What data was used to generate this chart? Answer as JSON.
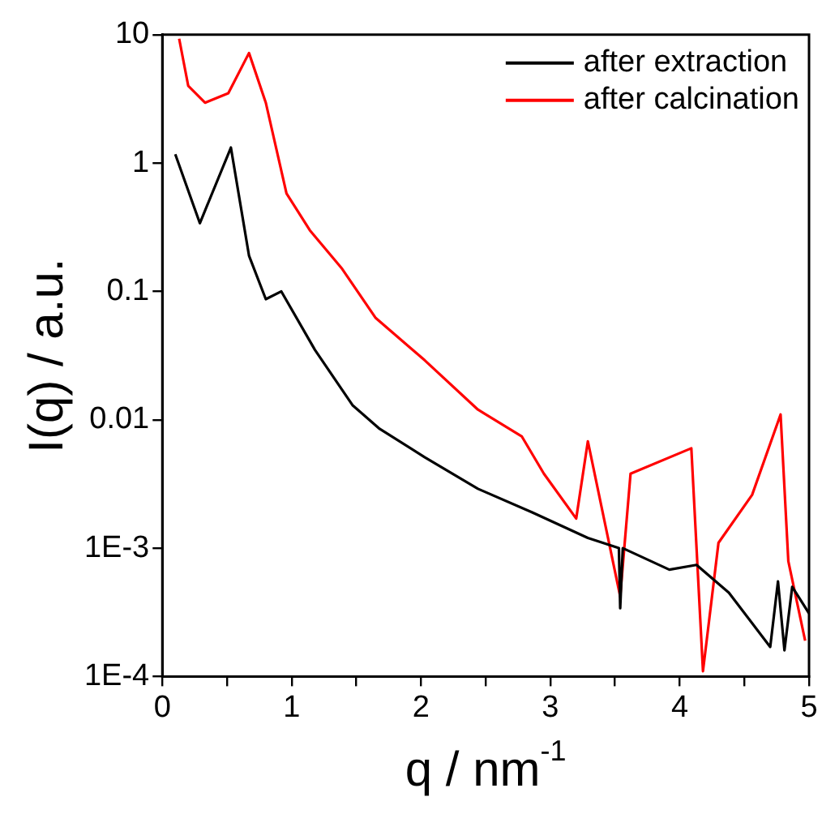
{
  "chart_data": {
    "type": "line",
    "xlabel": "q / nm$^{-1}$",
    "ylabel": "I(q) / a.u.",
    "log": "y",
    "grid": false,
    "legend": "top right",
    "marker": "none",
    "line_style": "solid",
    "xlim": [
      0,
      5
    ],
    "xticks": [
      0,
      {
        "value": 0.5,
        "label": null
      },
      1,
      {
        "value": 1.5,
        "label": null
      },
      2,
      {
        "value": 2.5,
        "label": null
      },
      3,
      {
        "value": 3.5,
        "label": null
      },
      4,
      {
        "value": 4.5,
        "label": null
      },
      5
    ],
    "ylim": [
      0.0001,
      10
    ],
    "yticks": [
      {
        "value": 0.0001,
        "label": "1E-4"
      },
      {
        "value": 0.001,
        "label": "1E-3"
      },
      0.01,
      0.1,
      1,
      10
    ],
    "series": [
      {
        "name": "after extraction",
        "color": "#000000",
        "x": [
          0.1,
          0.29,
          0.53,
          0.67,
          0.8,
          0.92,
          1.18,
          1.47,
          1.68,
          2.03,
          2.44,
          2.86,
          3.29,
          3.53,
          3.54,
          3.56,
          3.92,
          4.13,
          4.38,
          4.7,
          4.76,
          4.81,
          4.87,
          5.0
        ],
        "values": [
          1.17,
          0.34,
          1.32,
          0.19,
          0.087,
          0.1,
          0.035,
          0.013,
          0.0085,
          0.0051,
          0.0029,
          0.0019,
          0.0012,
          0.001,
          0.00034,
          0.001,
          0.00068,
          0.00074,
          0.00045,
          0.00017,
          0.00055,
          0.00016,
          0.0005,
          0.00031
        ]
      },
      {
        "name": "after calcination",
        "color": "#ff0000",
        "x": [
          0.13,
          0.2,
          0.33,
          0.51,
          0.67,
          0.8,
          0.96,
          1.14,
          1.39,
          1.65,
          2.03,
          2.44,
          2.78,
          2.95,
          3.2,
          3.29,
          3.54,
          3.62,
          4.09,
          4.18,
          4.3,
          4.56,
          4.78,
          4.84,
          4.97
        ],
        "values": [
          9.3,
          4.0,
          2.95,
          3.5,
          7.2,
          2.95,
          0.58,
          0.3,
          0.15,
          0.062,
          0.029,
          0.012,
          0.0074,
          0.0038,
          0.0017,
          0.0068,
          0.00042,
          0.0038,
          0.006,
          0.00011,
          0.0011,
          0.0026,
          0.011,
          0.00079,
          0.00019
        ]
      }
    ]
  }
}
